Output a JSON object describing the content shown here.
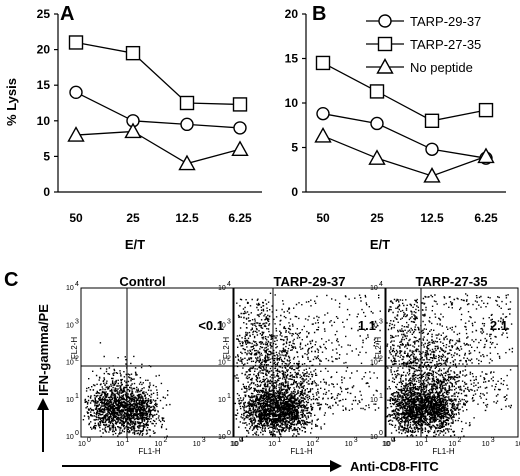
{
  "chart_data": [
    {
      "panel": "A",
      "type": "line",
      "categories": [
        "50",
        "25",
        "12.5",
        "6.25"
      ],
      "ylabel": "% Lysis",
      "xlabel": "E/T",
      "ylim": [
        0,
        25
      ],
      "yticks": [
        "0",
        "5",
        "10",
        "15",
        "20",
        "25"
      ],
      "series": [
        {
          "name": "TARP-29-37",
          "marker": "circle",
          "values": [
            14,
            10,
            9.5,
            9
          ]
        },
        {
          "name": "TARP-27-35",
          "marker": "square",
          "values": [
            21,
            19.5,
            12.5,
            12.3
          ]
        },
        {
          "name": "No peptide",
          "marker": "triangle",
          "values": [
            8,
            8.5,
            4,
            6
          ]
        }
      ]
    },
    {
      "panel": "B",
      "type": "line",
      "categories": [
        "50",
        "25",
        "12.5",
        "6.25"
      ],
      "xlabel": "E/T",
      "ylim": [
        0,
        20
      ],
      "yticks": [
        "0",
        "5",
        "10",
        "15",
        "20"
      ],
      "legend_position": "top-right",
      "series": [
        {
          "name": "TARP-29-37",
          "marker": "circle",
          "values": [
            8.8,
            7.7,
            4.8,
            3.8
          ]
        },
        {
          "name": "TARP-27-35",
          "marker": "square",
          "values": [
            14.5,
            11.3,
            8,
            9.2
          ]
        },
        {
          "name": "No peptide",
          "marker": "triangle",
          "values": [
            6.3,
            3.8,
            1.8,
            4
          ]
        }
      ]
    },
    {
      "panel": "C",
      "type": "scatter",
      "ylabel": "IFN-gamma/PE",
      "xlabel": "Anti-CD8-FITC",
      "plots": [
        {
          "title": "Control",
          "quadrant_value": "<0.1",
          "x_axis_label": "FL1-H",
          "y_axis_label": "FL2-H"
        },
        {
          "title": "TARP-29-37",
          "quadrant_value": "1.1",
          "x_axis_label": "FL1-H",
          "y_axis_label": "FL2-H"
        },
        {
          "title": "TARP-27-35",
          "quadrant_value": "2.1",
          "x_axis_label": "FL1-H",
          "y_axis_label": "FL2-H"
        }
      ],
      "log_tick_exponents": [
        "0",
        "1",
        "2",
        "3",
        "4"
      ],
      "log_tick_base": "10"
    }
  ]
}
